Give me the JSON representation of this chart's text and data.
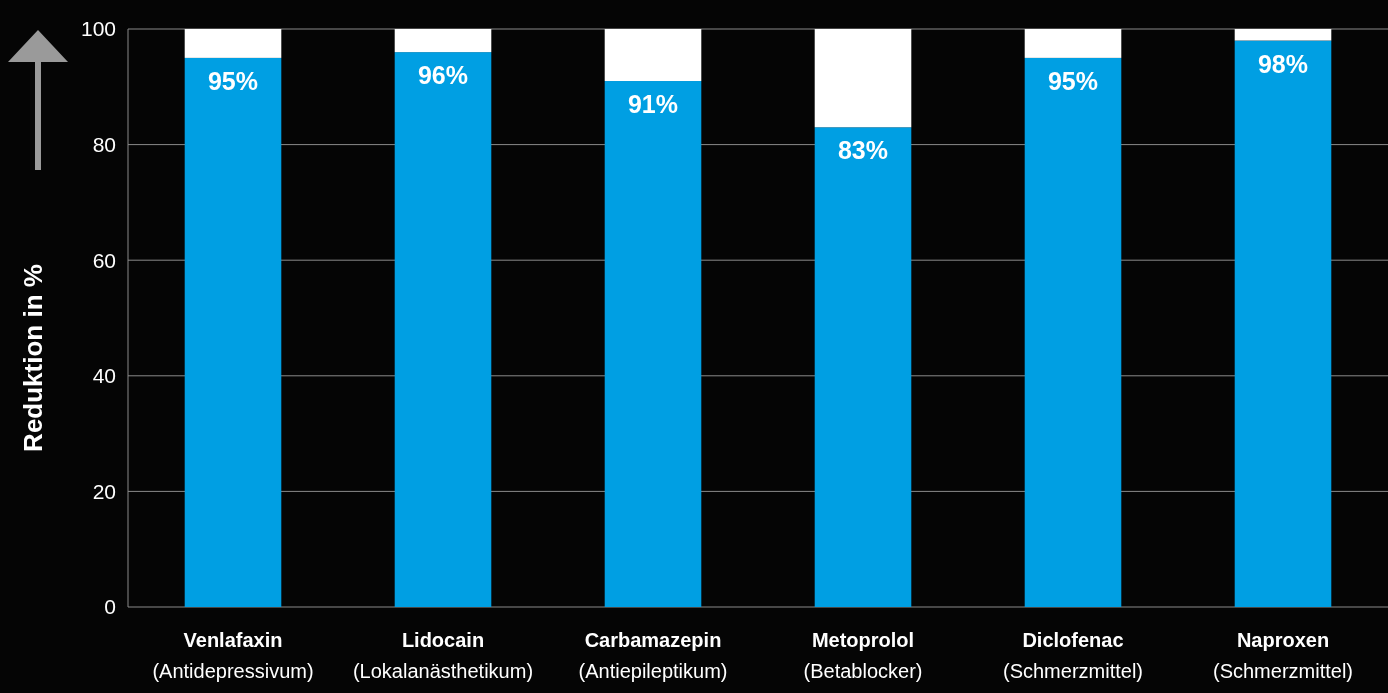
{
  "chart_data": {
    "type": "bar",
    "stacked": true,
    "ylabel": "Reduktion in %",
    "categories": [
      "Venlafaxin\n(Antidepressivum)",
      "Lidocain\n(Lokalanästhetikum)",
      "Carbamazepin\n(Antiepileptikum)",
      "Metoprolol\n(Betablocker)",
      "Diclofenac\n(Schmerzmittel)",
      "Naproxen\n(Schmerzmittel)"
    ],
    "series": [
      {
        "color": "#009fe3",
        "values": [
          95,
          96,
          91,
          83,
          95,
          98
        ],
        "value_labels": [
          "95%",
          "96%",
          "91%",
          "83%",
          "95%",
          "98%"
        ]
      },
      {
        "color": "#ffffff",
        "values": [
          5,
          4,
          9,
          17,
          5,
          2
        ]
      }
    ],
    "ylim": [
      0,
      100
    ],
    "yticks": [
      0,
      20,
      40,
      60,
      80,
      100
    ],
    "grid": "y"
  }
}
